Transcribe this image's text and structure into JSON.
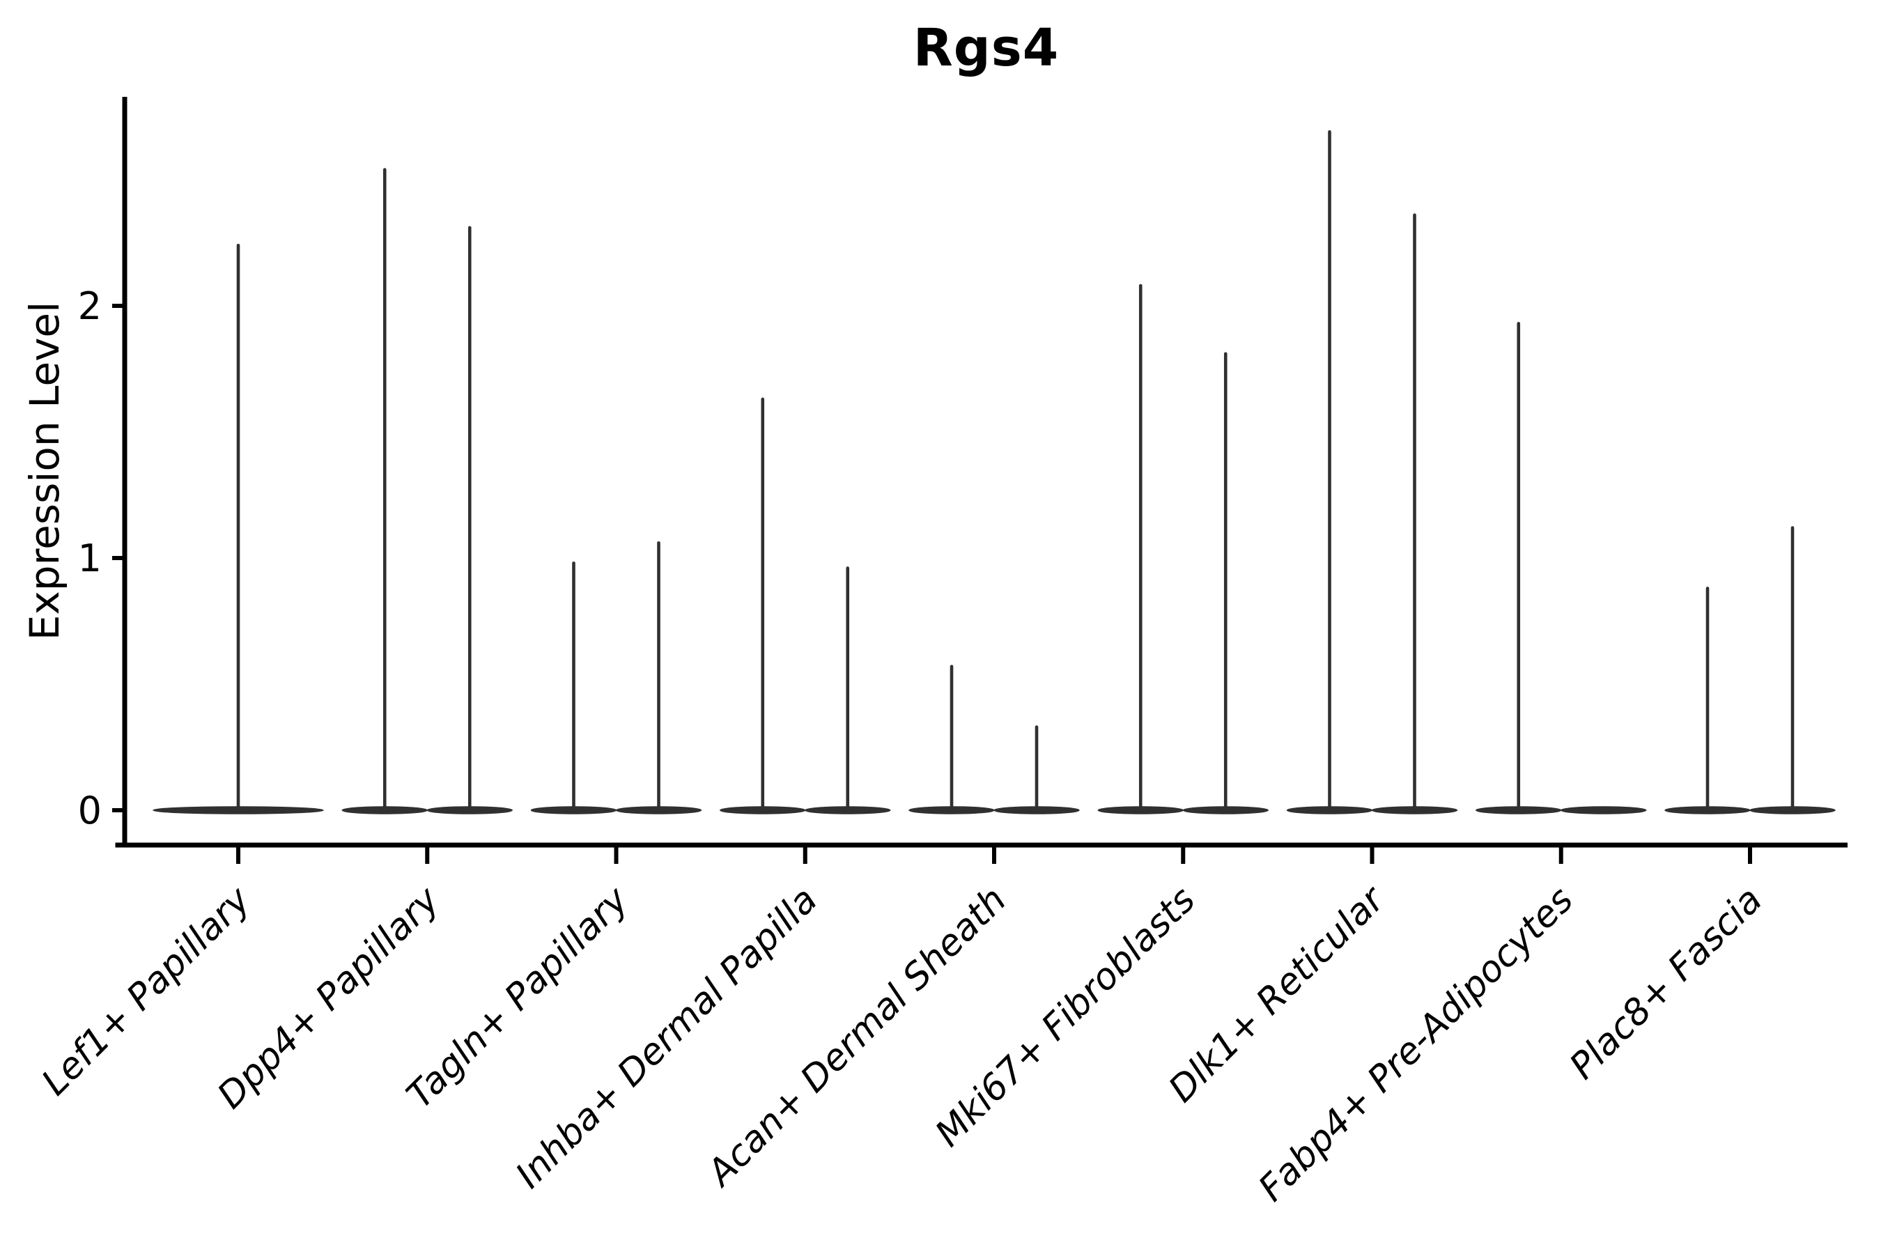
{
  "chart_data": {
    "type": "violin",
    "title": "Rgs4",
    "ylabel": "Expression Level",
    "xlabel": "",
    "yticks": [
      0,
      1,
      2
    ],
    "ylim": [
      -0.14,
      2.83
    ],
    "grid": false,
    "legend": "none",
    "categories": [
      "Lef1+ Papillary",
      "Dpp4+ Papillary",
      "Tagln+ Papillary",
      "Inhba+ Dermal Papilla",
      "Acan+ Dermal Sheath",
      "Mki67+ Fibroblasts",
      "Dlk1+ Reticular",
      "Fabp4+ Pre-Adipocytes",
      "Plac8+ Fascia"
    ],
    "violins": [
      {
        "category": "Lef1+ Papillary",
        "distributions": [
          {
            "offset": 0,
            "half_width": 122,
            "max_expression": 2.24
          }
        ]
      },
      {
        "category": "Dpp4+ Papillary",
        "distributions": [
          {
            "offset": -61,
            "half_width": 61,
            "max_expression": 2.54
          },
          {
            "offset": 61,
            "half_width": 61,
            "max_expression": 2.31
          }
        ]
      },
      {
        "category": "Tagln+ Papillary",
        "distributions": [
          {
            "offset": -61,
            "half_width": 61,
            "max_expression": 0.98
          },
          {
            "offset": 61,
            "half_width": 61,
            "max_expression": 1.06
          }
        ]
      },
      {
        "category": "Inhba+ Dermal Papilla",
        "distributions": [
          {
            "offset": -61,
            "half_width": 61,
            "max_expression": 1.63
          },
          {
            "offset": 61,
            "half_width": 61,
            "max_expression": 0.96
          }
        ]
      },
      {
        "category": "Acan+ Dermal Sheath",
        "distributions": [
          {
            "offset": -61,
            "half_width": 61,
            "max_expression": 0.57
          },
          {
            "offset": 61,
            "half_width": 61,
            "max_expression": 0.33
          }
        ]
      },
      {
        "category": "Mki67+ Fibroblasts",
        "distributions": [
          {
            "offset": -61,
            "half_width": 61,
            "max_expression": 2.08
          },
          {
            "offset": 61,
            "half_width": 61,
            "max_expression": 1.81
          }
        ]
      },
      {
        "category": "Dlk1+ Reticular",
        "distributions": [
          {
            "offset": -61,
            "half_width": 61,
            "max_expression": 2.69
          },
          {
            "offset": 61,
            "half_width": 61,
            "max_expression": 2.36
          }
        ]
      },
      {
        "category": "Fabp4+ Pre-Adipocytes",
        "distributions": [
          {
            "offset": -61,
            "half_width": 61,
            "max_expression": 1.93
          },
          {
            "offset": 61,
            "half_width": 61,
            "max_expression": 0
          }
        ]
      },
      {
        "category": "Plac8+ Fascia",
        "distributions": [
          {
            "offset": -61,
            "half_width": 61,
            "max_expression": 0.88
          },
          {
            "offset": 61,
            "half_width": 61,
            "max_expression": 1.12
          }
        ]
      }
    ],
    "colors": {
      "violin": "#303030",
      "axis": "#000000",
      "text": "#000000"
    }
  }
}
